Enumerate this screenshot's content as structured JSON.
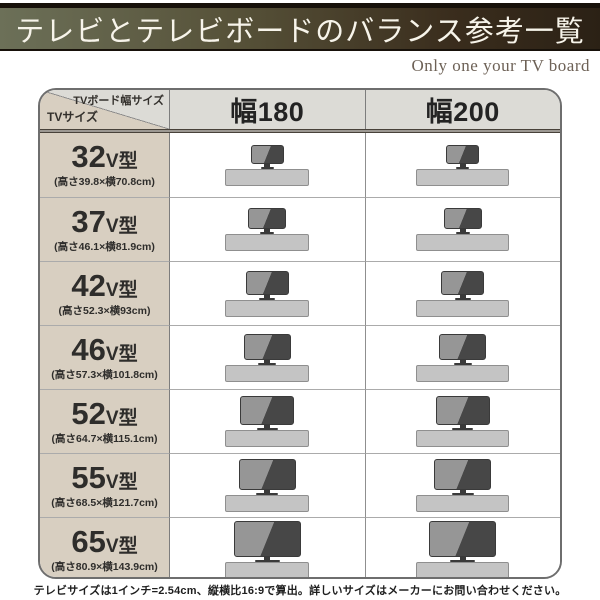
{
  "title": "テレビとテレビボードのバランス参考一覧",
  "subtitle": "Only one your TV board",
  "table": {
    "corner": {
      "top_label": "TVボード幅サイズ",
      "left_label": "TVサイズ"
    },
    "columns": [
      {
        "label": "幅180",
        "board_width_cm": 180
      },
      {
        "label": "幅200",
        "board_width_cm": 200
      }
    ],
    "rows": [
      {
        "size_num": "32",
        "size_suffix": "V型",
        "dims": "(高さ39.8×横70.8cm)",
        "tv_height_cm": 39.8,
        "tv_width_cm": 70.8
      },
      {
        "size_num": "37",
        "size_suffix": "V型",
        "dims": "(高さ46.1×横81.9cm)",
        "tv_height_cm": 46.1,
        "tv_width_cm": 81.9
      },
      {
        "size_num": "42",
        "size_suffix": "V型",
        "dims": "(高さ52.3×横93cm)",
        "tv_height_cm": 52.3,
        "tv_width_cm": 93
      },
      {
        "size_num": "46",
        "size_suffix": "V型",
        "dims": "(高さ57.3×横101.8cm)",
        "tv_height_cm": 57.3,
        "tv_width_cm": 101.8
      },
      {
        "size_num": "52",
        "size_suffix": "V型",
        "dims": "(高さ64.7×横115.1cm)",
        "tv_height_cm": 64.7,
        "tv_width_cm": 115.1
      },
      {
        "size_num": "55",
        "size_suffix": "V型",
        "dims": "(高さ68.5×横121.7cm)",
        "tv_height_cm": 68.5,
        "tv_width_cm": 121.7
      },
      {
        "size_num": "65",
        "size_suffix": "V型",
        "dims": "(高さ80.9×横143.9cm)",
        "tv_height_cm": 80.9,
        "tv_width_cm": 143.9
      }
    ]
  },
  "footnote": "テレビサイズは1インチ=2.54cm、縦横比16:9で算出。詳しいサイズはメーカーにお問い合わせください。",
  "colors": {
    "title_bar_left": "#6c7058",
    "title_bar_right": "#2b2115",
    "title_text": "#f7f4ea",
    "subtitle_text": "#6d6156",
    "size_cell_bg": "#d8cfc1",
    "header_cell_bg": "#dcdbd6",
    "board_fill": "#c4c4c4",
    "tv_light": "#969696",
    "tv_dark": "#474747"
  }
}
